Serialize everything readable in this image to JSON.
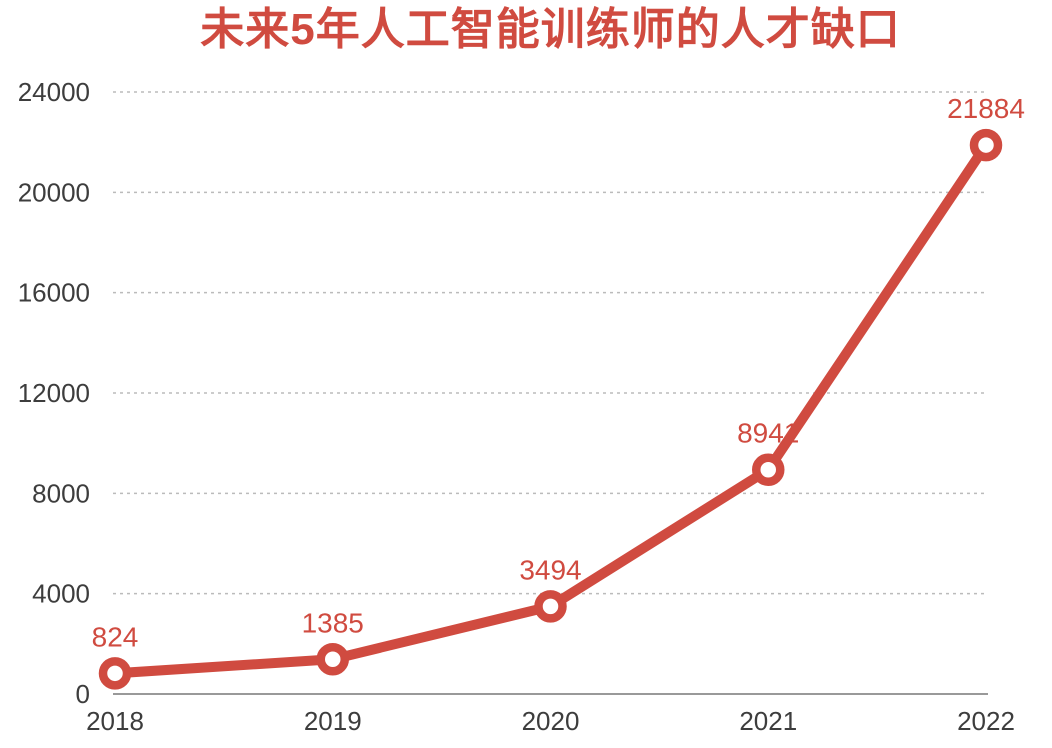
{
  "chart_data": {
    "type": "line",
    "title": "未来5年人工智能训练师的人才缺口",
    "categories": [
      "2018",
      "2019",
      "2020",
      "2021",
      "2022"
    ],
    "values": [
      824,
      1385,
      3494,
      8941,
      21884
    ],
    "point_labels": [
      "824",
      "1385",
      "3494",
      "8941",
      "21884"
    ],
    "y_ticks": [
      0,
      4000,
      8000,
      12000,
      16000,
      20000,
      24000
    ],
    "ylim": [
      0,
      24000
    ],
    "xlabel": "",
    "ylabel": "",
    "legend": "none",
    "grid": "horizontal-dashed",
    "colors": {
      "line": "#d04b40",
      "marker_ring": "#d04b40",
      "marker_fill": "#ffffff",
      "title": "#d04b40",
      "point_label": "#d04b40",
      "axis_text": "#3d3d3d",
      "gridline": "#bbbbbb",
      "axis_line": "#999999",
      "background": "#ffffff"
    }
  }
}
